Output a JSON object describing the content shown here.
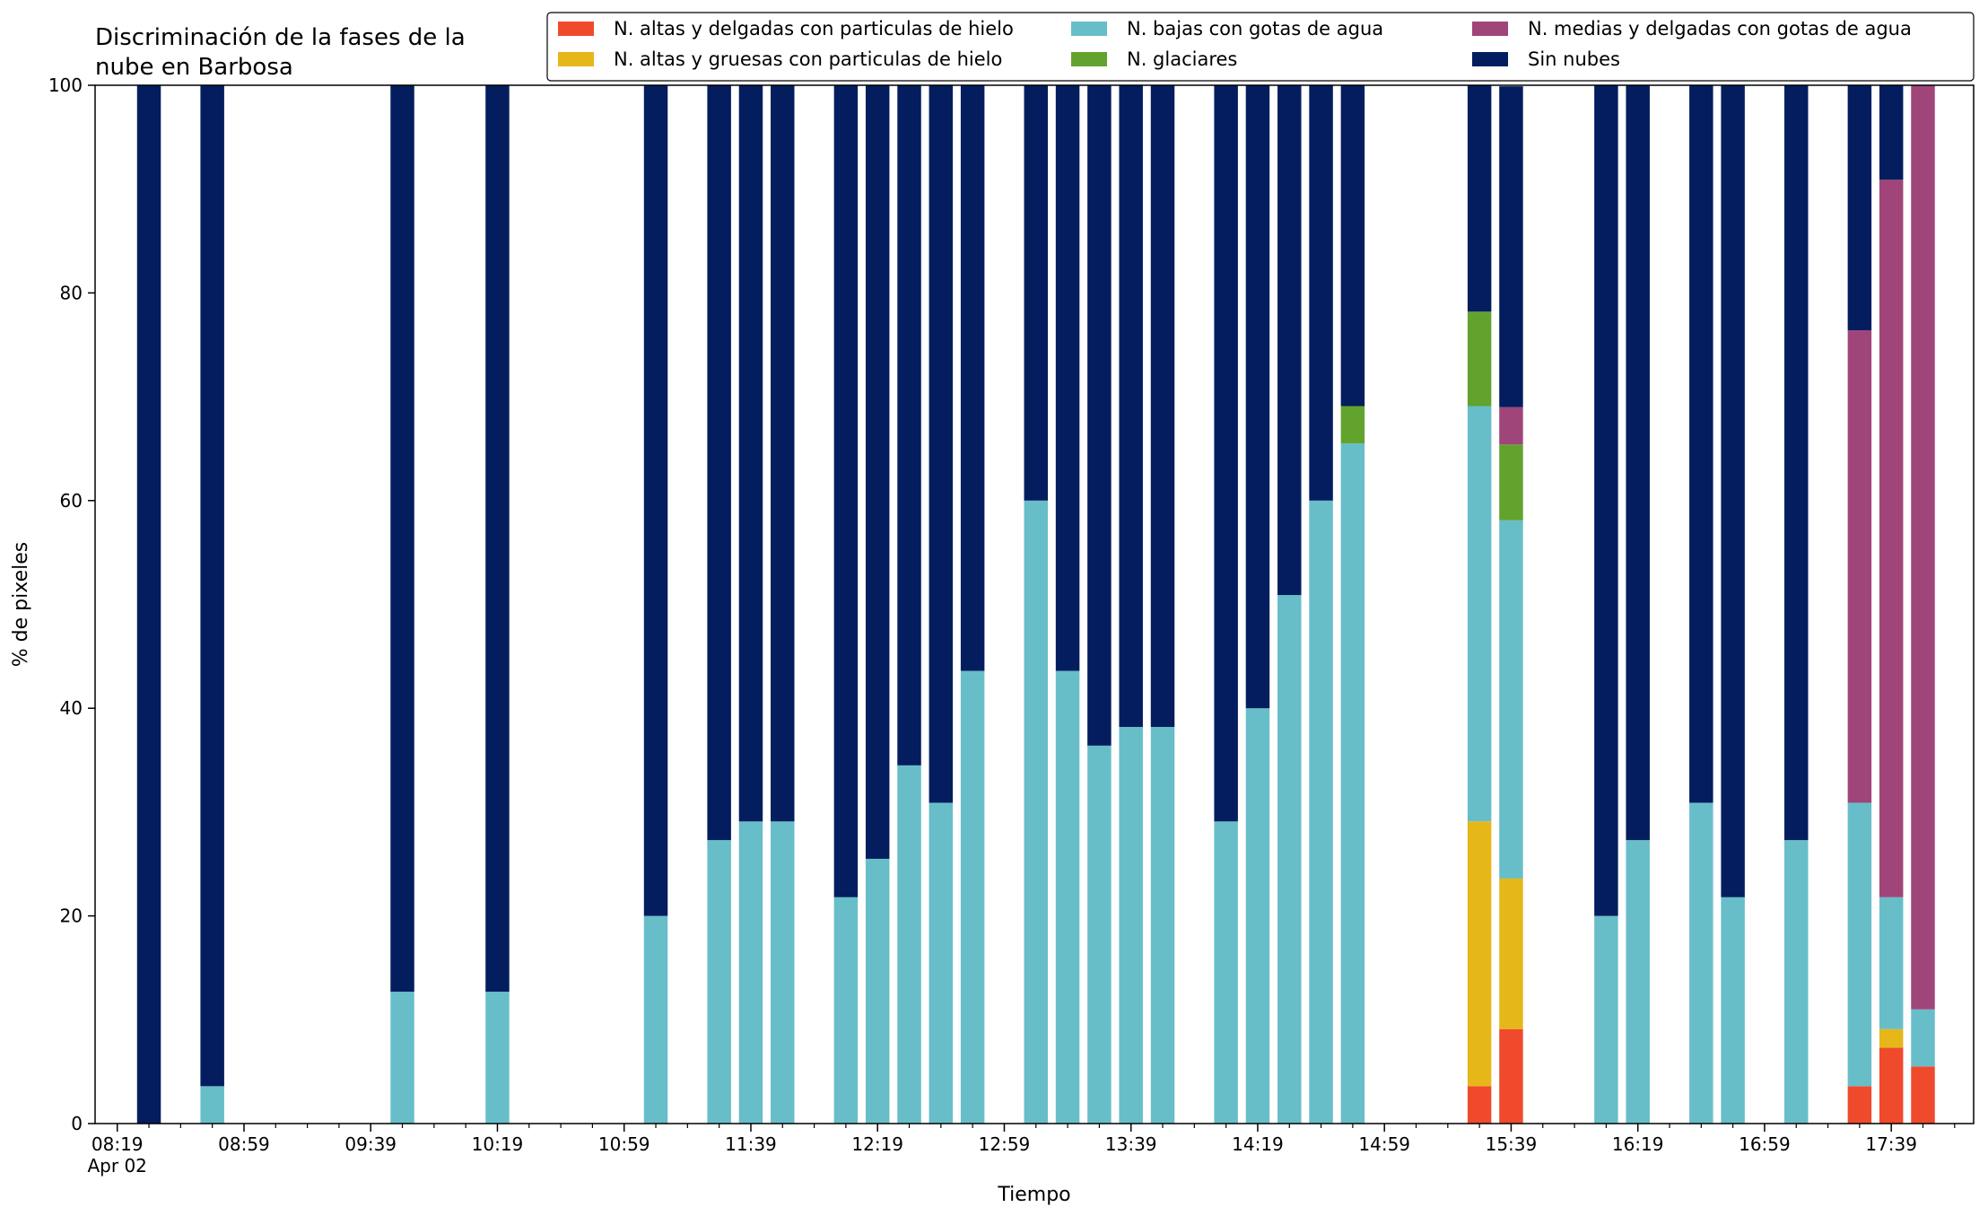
{
  "chart_data": {
    "type": "bar",
    "stacked": true,
    "title": "Discriminación de la fases de la\nnube en Barbosa",
    "xlabel": "Tiempo",
    "ylabel": "% de pixeles",
    "ylim": [
      0,
      100
    ],
    "yticks": [
      0,
      20,
      40,
      60,
      80,
      100
    ],
    "xlim": [
      "08:12",
      "18:05"
    ],
    "xtick_labels": [
      "08:19",
      "08:59",
      "09:39",
      "10:19",
      "10:59",
      "11:39",
      "12:19",
      "12:59",
      "13:39",
      "14:19",
      "14:59",
      "15:39",
      "16:19",
      "16:59",
      "17:39"
    ],
    "xtick_sublabel": "Apr 02",
    "bar_width_minutes": 7.5,
    "grid": false,
    "legend_position": "top-right",
    "x": [
      "08:29",
      "08:49",
      "09:49",
      "10:19",
      "11:09",
      "11:29",
      "11:39",
      "11:49",
      "12:09",
      "12:19",
      "12:29",
      "12:39",
      "12:49",
      "13:09",
      "13:19",
      "13:29",
      "13:39",
      "13:49",
      "14:09",
      "14:19",
      "14:29",
      "14:39",
      "14:49",
      "15:29",
      "15:39",
      "16:09",
      "16:19",
      "16:39",
      "16:49",
      "17:09",
      "17:29",
      "17:39",
      "17:49"
    ],
    "series": [
      {
        "name": "N. altas y delgadas con particulas de hielo",
        "color": "#f04a2d",
        "values": [
          0,
          0,
          0,
          0,
          0,
          0,
          0,
          0,
          0,
          0,
          0,
          0,
          0,
          0,
          0,
          0,
          0,
          0,
          0,
          0,
          0,
          0,
          0,
          3.6,
          9.1,
          0,
          0,
          0,
          0,
          0,
          3.6,
          7.3,
          5.5
        ]
      },
      {
        "name": "N. altas y gruesas con particulas de hielo",
        "color": "#e6b719",
        "values": [
          0,
          0,
          0,
          0,
          0,
          0,
          0,
          0,
          0,
          0,
          0,
          0,
          0,
          0,
          0,
          0,
          0,
          0,
          0,
          0,
          0,
          0,
          0,
          25.5,
          14.5,
          0,
          0,
          0,
          0,
          0,
          0,
          1.8,
          0
        ]
      },
      {
        "name": "N. bajas con gotas de agua",
        "color": "#67bec9",
        "values": [
          0,
          3.6,
          12.7,
          12.7,
          20,
          27.3,
          29.1,
          29.1,
          21.8,
          25.5,
          34.5,
          30.9,
          43.6,
          60,
          43.6,
          36.4,
          38.2,
          38.2,
          29.1,
          40,
          50.9,
          60,
          65.5,
          40,
          34.5,
          20,
          27.3,
          30.9,
          21.8,
          27.3,
          27.3,
          12.7,
          5.5
        ]
      },
      {
        "name": "N. glaciares",
        "color": "#62a32e",
        "values": [
          0,
          0,
          0,
          0,
          0,
          0,
          0,
          0,
          0,
          0,
          0,
          0,
          0,
          0,
          0,
          0,
          0,
          0,
          0,
          0,
          0,
          0,
          3.6,
          9.1,
          7.3,
          0,
          0,
          0,
          0,
          0,
          0,
          0,
          0
        ]
      },
      {
        "name": "N. medias y delgadas con gotas de agua",
        "color": "#a0457a",
        "values": [
          0,
          0,
          0,
          0,
          0,
          0,
          0,
          0,
          0,
          0,
          0,
          0,
          0,
          0,
          0,
          0,
          0,
          0,
          0,
          0,
          0,
          0,
          0,
          0,
          3.6,
          0,
          0,
          0,
          0,
          0,
          45.5,
          69.1,
          89
        ]
      },
      {
        "name": "Sin nubes",
        "color": "#031d5e",
        "values": [
          100,
          96.4,
          87.3,
          87.3,
          80,
          72.7,
          70.9,
          70.9,
          78.2,
          74.5,
          65.5,
          69.1,
          56.4,
          40,
          56.4,
          63.6,
          61.8,
          61.8,
          70.9,
          60,
          49.1,
          40,
          30.9,
          21.8,
          30.9,
          80,
          72.7,
          69.1,
          78.2,
          72.7,
          23.6,
          9.1,
          0
        ]
      }
    ]
  }
}
